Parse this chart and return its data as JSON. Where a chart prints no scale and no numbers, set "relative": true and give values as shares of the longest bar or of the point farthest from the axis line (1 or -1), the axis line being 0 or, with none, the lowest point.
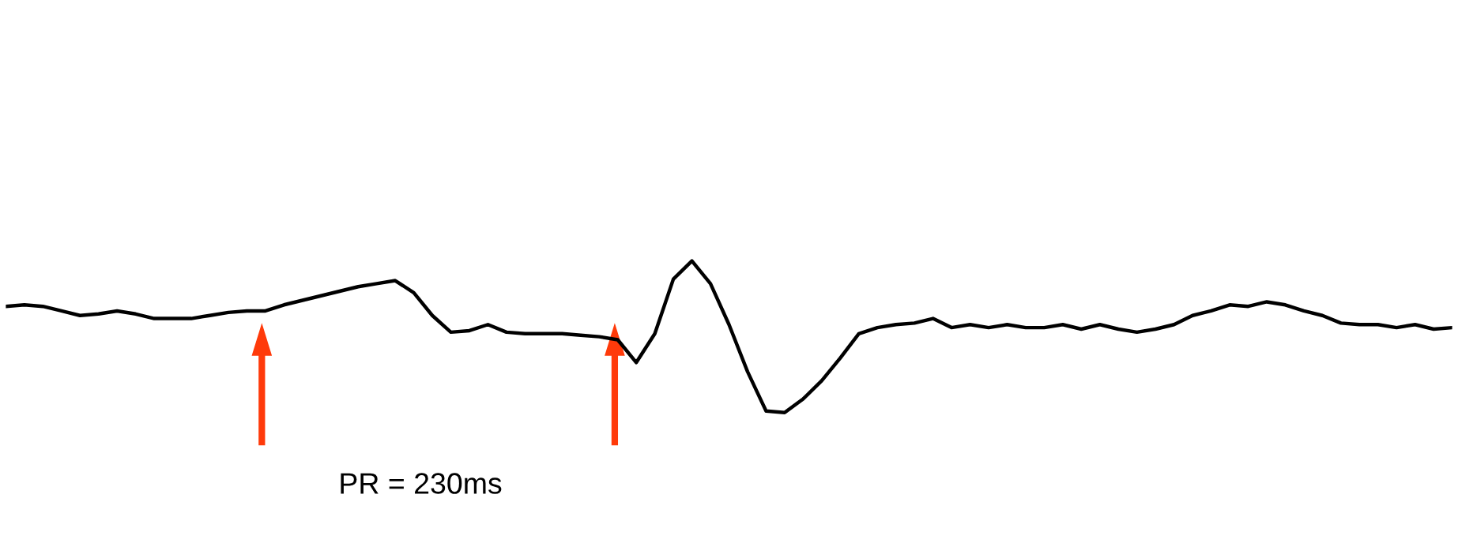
{
  "chart_data": {
    "type": "line",
    "relative": true,
    "categories": [
      null,
      null,
      null,
      null,
      null,
      null,
      null,
      null,
      null,
      null,
      null,
      null,
      null,
      null,
      null,
      null,
      null,
      null,
      null,
      null,
      null,
      null,
      null,
      null,
      null,
      null,
      null,
      null,
      null,
      null,
      null,
      null,
      null,
      null,
      null,
      null,
      null,
      null,
      null,
      null,
      null,
      null,
      null,
      null,
      null,
      null,
      null,
      null,
      null,
      null,
      null,
      null,
      null,
      null,
      null,
      null,
      null,
      null,
      null,
      null,
      null,
      null,
      null,
      null,
      null,
      null,
      null,
      null,
      null,
      null,
      null,
      null,
      null,
      null,
      null,
      null,
      null,
      null,
      null
    ],
    "series": [
      {
        "color": "#000000",
        "values": [
          0.7,
          0.71,
          0.7,
          0.67,
          0.64,
          0.65,
          0.67,
          0.65,
          0.62,
          0.62,
          0.62,
          0.64,
          0.66,
          0.67,
          0.67,
          0.71,
          0.74,
          0.77,
          0.8,
          0.83,
          0.85,
          0.87,
          0.79,
          0.64,
          0.53,
          0.54,
          0.58,
          0.53,
          0.52,
          0.52,
          0.52,
          0.51,
          0.5,
          0.48,
          0.33,
          0.52,
          0.88,
          1.0,
          0.85,
          0.58,
          0.27,
          0.01,
          0,
          0.09,
          0.21,
          0.36,
          0.52,
          0.56,
          0.58,
          0.59,
          0.62,
          0.56,
          0.58,
          0.56,
          0.58,
          0.56,
          0.56,
          0.58,
          0.55,
          0.58,
          0.55,
          0.53,
          0.55,
          0.58,
          0.64,
          0.67,
          0.71,
          0.7,
          0.73,
          0.71,
          0.67,
          0.64,
          0.59,
          0.58,
          0.58,
          0.56,
          0.58,
          0.55,
          0.56
        ]
      }
    ],
    "annotations": [
      "PR = 230ms"
    ]
  }
}
